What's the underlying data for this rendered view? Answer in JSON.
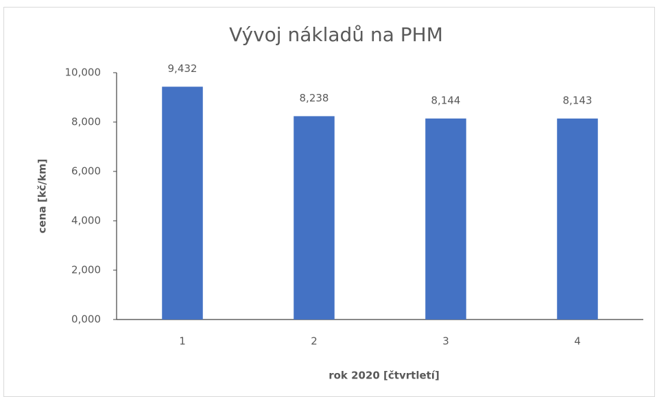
{
  "chart_data": {
    "type": "bar",
    "title": "Vývoj nákladů na PHM",
    "x_label": "rok 2020 [čtvrtletí]",
    "y_label": "cena [kč/km]",
    "categories": [
      "1",
      "2",
      "3",
      "4"
    ],
    "values": [
      9.432,
      8.238,
      8.144,
      8.143
    ],
    "value_labels": [
      "9,432",
      "8,238",
      "8,144",
      "8,143"
    ],
    "color": "#4472c4",
    "ylim": [
      0,
      10
    ],
    "yticks": [
      {
        "value": 0,
        "label": "0,000"
      },
      {
        "value": 2,
        "label": "2,000"
      },
      {
        "value": 4,
        "label": "4,000"
      },
      {
        "value": 6,
        "label": "6,000"
      },
      {
        "value": 8,
        "label": "8,000"
      },
      {
        "value": 10,
        "label": "10,000"
      }
    ],
    "grid": false
  }
}
